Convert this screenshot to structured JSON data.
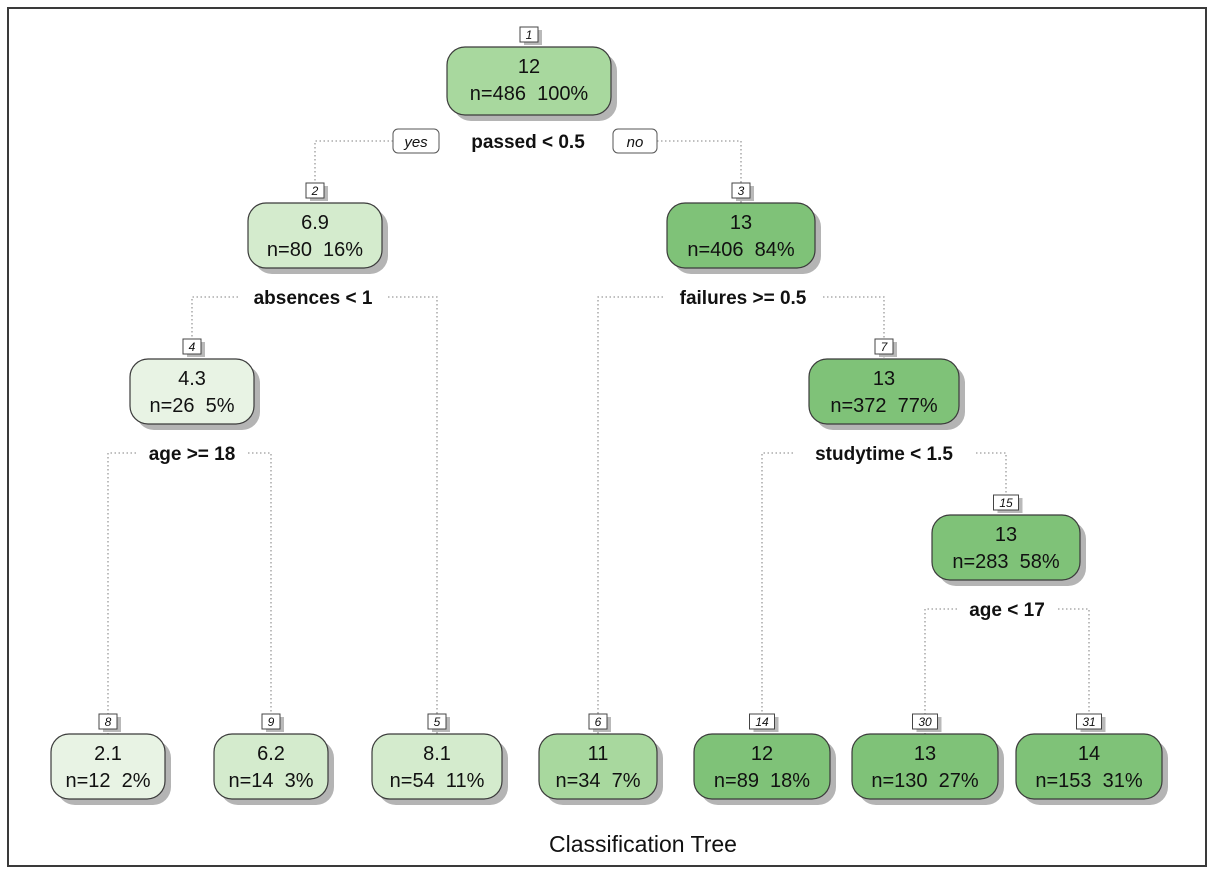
{
  "title": "Classification Tree",
  "branch_labels": {
    "yes": "yes",
    "no": "no"
  },
  "colors": {
    "very_light": "#e8f3e4",
    "light": "#d4ebcd",
    "medium": "#a8d89e",
    "dark": "#7fc278"
  },
  "nodes": [
    {
      "id": "1",
      "num": "1",
      "value": "12",
      "stats": "n=486  100%",
      "shade": "medium"
    },
    {
      "id": "2",
      "num": "2",
      "value": "6.9",
      "stats": "n=80  16%",
      "shade": "light"
    },
    {
      "id": "3",
      "num": "3",
      "value": "13",
      "stats": "n=406  84%",
      "shade": "dark"
    },
    {
      "id": "4",
      "num": "4",
      "value": "4.3",
      "stats": "n=26  5%",
      "shade": "very_light"
    },
    {
      "id": "7",
      "num": "7",
      "value": "13",
      "stats": "n=372  77%",
      "shade": "dark"
    },
    {
      "id": "15",
      "num": "15",
      "value": "13",
      "stats": "n=283  58%",
      "shade": "dark"
    },
    {
      "id": "8",
      "num": "8",
      "value": "2.1",
      "stats": "n=12  2%",
      "shade": "very_light"
    },
    {
      "id": "9",
      "num": "9",
      "value": "6.2",
      "stats": "n=14  3%",
      "shade": "light"
    },
    {
      "id": "5",
      "num": "5",
      "value": "8.1",
      "stats": "n=54  11%",
      "shade": "light"
    },
    {
      "id": "6",
      "num": "6",
      "value": "11",
      "stats": "n=34  7%",
      "shade": "medium"
    },
    {
      "id": "14",
      "num": "14",
      "value": "12",
      "stats": "n=89  18%",
      "shade": "dark"
    },
    {
      "id": "30",
      "num": "30",
      "value": "13",
      "stats": "n=130  27%",
      "shade": "dark"
    },
    {
      "id": "31",
      "num": "31",
      "value": "14",
      "stats": "n=153  31%",
      "shade": "dark"
    }
  ],
  "splits": [
    {
      "id": "1",
      "label": "passed < 0.5"
    },
    {
      "id": "2",
      "label": "absences < 1"
    },
    {
      "id": "3",
      "label": "failures >= 0.5"
    },
    {
      "id": "4",
      "label": "age >= 18"
    },
    {
      "id": "7",
      "label": "studytime < 1.5"
    },
    {
      "id": "15",
      "label": "age < 17"
    }
  ]
}
